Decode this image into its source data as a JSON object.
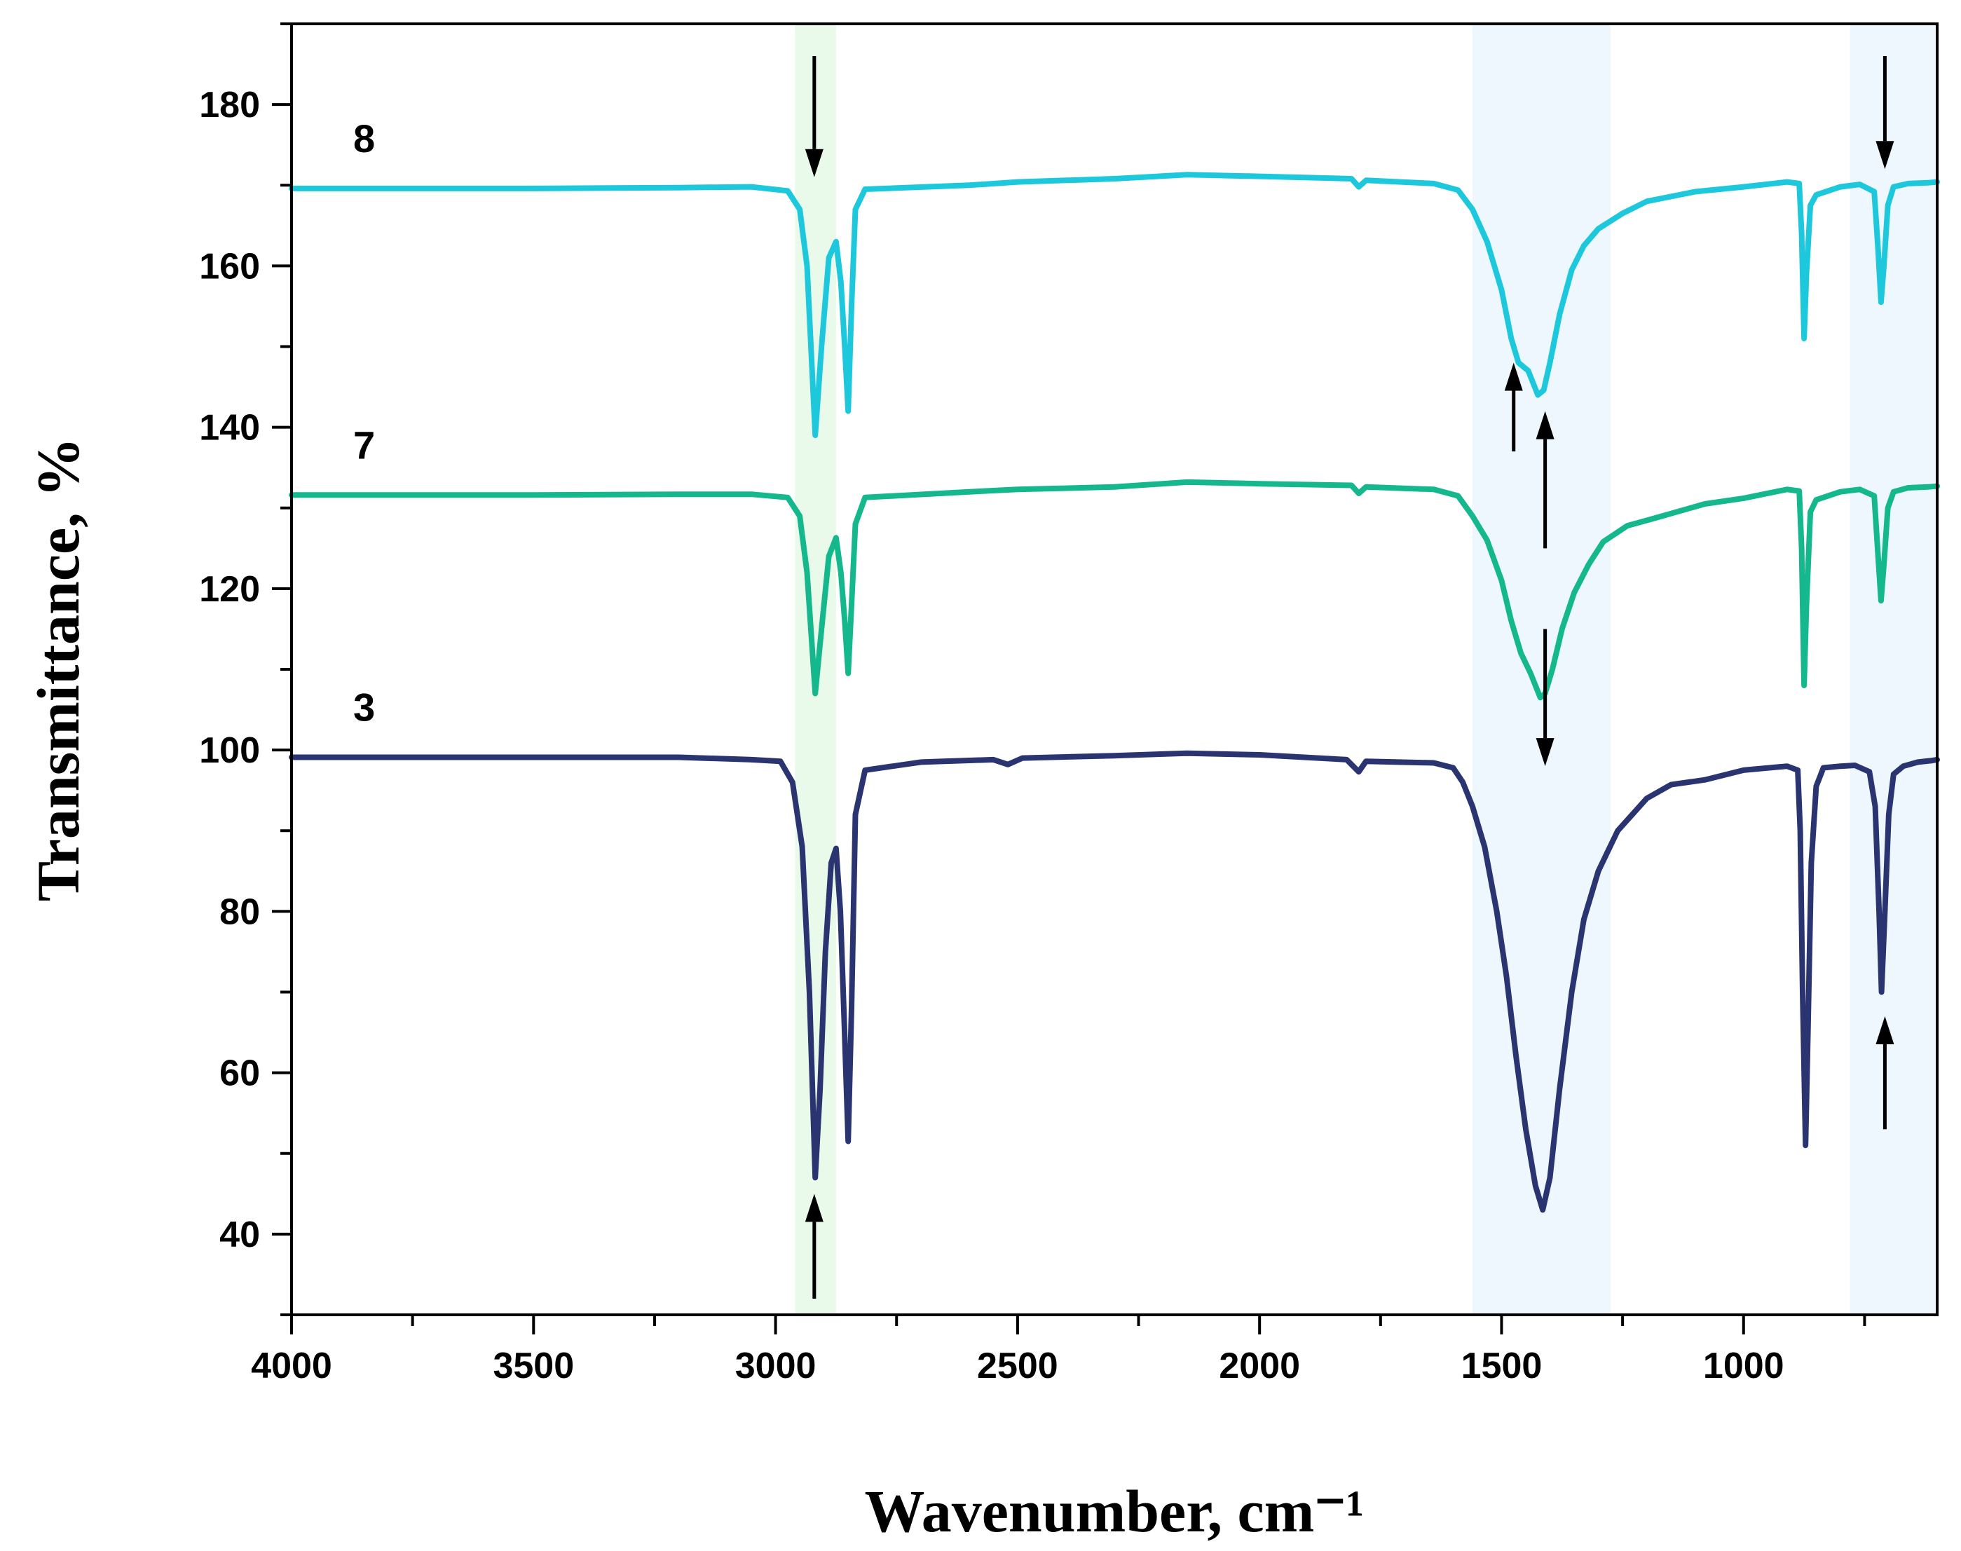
{
  "chart_data": {
    "type": "line",
    "title": "",
    "xlabel": "Wavenumber, cm⁻¹",
    "ylabel": "Transmittance, %",
    "xlim": [
      4000,
      600
    ],
    "ylim": [
      30,
      190
    ],
    "x_ticks": [
      4000,
      3500,
      3000,
      2500,
      2000,
      1500,
      1000
    ],
    "y_ticks": [
      40,
      60,
      80,
      100,
      120,
      140,
      160,
      180
    ],
    "grid": false,
    "highlight_bands": [
      {
        "from": 2960,
        "to": 2875,
        "color": "#eafaea"
      },
      {
        "from": 1560,
        "to": 1275,
        "color": "#eef7fd"
      },
      {
        "from": 780,
        "to": 600,
        "color": "#eef7fd"
      }
    ],
    "series": [
      {
        "name": "8",
        "color": "#1ec8dc",
        "points": [
          [
            4000,
            169.6
          ],
          [
            3500,
            169.6
          ],
          [
            3200,
            169.7
          ],
          [
            3050,
            169.8
          ],
          [
            2975,
            169.3
          ],
          [
            2950,
            167
          ],
          [
            2935,
            160
          ],
          [
            2918,
            139
          ],
          [
            2905,
            150
          ],
          [
            2890,
            161
          ],
          [
            2875,
            163
          ],
          [
            2865,
            158
          ],
          [
            2857,
            150
          ],
          [
            2850,
            142
          ],
          [
            2843,
            155
          ],
          [
            2835,
            167
          ],
          [
            2815,
            169.5
          ],
          [
            2600,
            170
          ],
          [
            2500,
            170.4
          ],
          [
            2300,
            170.8
          ],
          [
            2150,
            171.3
          ],
          [
            2000,
            171.1
          ],
          [
            1810,
            170.8
          ],
          [
            1795,
            169.8
          ],
          [
            1780,
            170.6
          ],
          [
            1640,
            170.2
          ],
          [
            1590,
            169.4
          ],
          [
            1560,
            167
          ],
          [
            1530,
            163
          ],
          [
            1500,
            157
          ],
          [
            1480,
            151
          ],
          [
            1465,
            148
          ],
          [
            1445,
            147
          ],
          [
            1425,
            144
          ],
          [
            1413,
            144.6
          ],
          [
            1400,
            148
          ],
          [
            1380,
            154
          ],
          [
            1355,
            159.5
          ],
          [
            1330,
            162.5
          ],
          [
            1300,
            164.6
          ],
          [
            1250,
            166.5
          ],
          [
            1200,
            168
          ],
          [
            1100,
            169.2
          ],
          [
            1000,
            169.8
          ],
          [
            910,
            170.4
          ],
          [
            885,
            170.2
          ],
          [
            880,
            164
          ],
          [
            875,
            151
          ],
          [
            870,
            159
          ],
          [
            862,
            167.5
          ],
          [
            850,
            168.8
          ],
          [
            800,
            169.8
          ],
          [
            760,
            170.1
          ],
          [
            730,
            169.2
          ],
          [
            722,
            162
          ],
          [
            716,
            155.5
          ],
          [
            710,
            160
          ],
          [
            702,
            167.5
          ],
          [
            690,
            169.8
          ],
          [
            660,
            170.2
          ],
          [
            620,
            170.3
          ],
          [
            600,
            170.4
          ]
        ]
      },
      {
        "name": "7",
        "color": "#14b88c",
        "points": [
          [
            4000,
            131.6
          ],
          [
            3500,
            131.6
          ],
          [
            3200,
            131.7
          ],
          [
            3050,
            131.7
          ],
          [
            2975,
            131.3
          ],
          [
            2950,
            129
          ],
          [
            2935,
            122
          ],
          [
            2918,
            107
          ],
          [
            2905,
            115
          ],
          [
            2890,
            124
          ],
          [
            2875,
            126.3
          ],
          [
            2865,
            122
          ],
          [
            2857,
            116
          ],
          [
            2850,
            109.5
          ],
          [
            2843,
            118
          ],
          [
            2835,
            128
          ],
          [
            2815,
            131.3
          ],
          [
            2600,
            132
          ],
          [
            2500,
            132.3
          ],
          [
            2300,
            132.6
          ],
          [
            2150,
            133.2
          ],
          [
            2000,
            133
          ],
          [
            1810,
            132.8
          ],
          [
            1795,
            131.8
          ],
          [
            1780,
            132.6
          ],
          [
            1640,
            132.3
          ],
          [
            1590,
            131.5
          ],
          [
            1560,
            129
          ],
          [
            1530,
            126
          ],
          [
            1500,
            121
          ],
          [
            1480,
            116
          ],
          [
            1460,
            112
          ],
          [
            1440,
            109.5
          ],
          [
            1420,
            106.5
          ],
          [
            1410,
            107
          ],
          [
            1395,
            110
          ],
          [
            1375,
            115
          ],
          [
            1350,
            119.5
          ],
          [
            1320,
            123
          ],
          [
            1290,
            125.8
          ],
          [
            1240,
            127.8
          ],
          [
            1180,
            128.8
          ],
          [
            1080,
            130.5
          ],
          [
            1000,
            131.2
          ],
          [
            910,
            132.3
          ],
          [
            885,
            132.1
          ],
          [
            880,
            125
          ],
          [
            875,
            108
          ],
          [
            870,
            118
          ],
          [
            862,
            129.5
          ],
          [
            850,
            131
          ],
          [
            800,
            132
          ],
          [
            760,
            132.3
          ],
          [
            730,
            131.5
          ],
          [
            722,
            124
          ],
          [
            716,
            118.5
          ],
          [
            710,
            123
          ],
          [
            702,
            130
          ],
          [
            690,
            132
          ],
          [
            660,
            132.5
          ],
          [
            620,
            132.6
          ],
          [
            600,
            132.7
          ]
        ]
      },
      {
        "name": "3",
        "color": "#2a3470",
        "points": [
          [
            4000,
            99.1
          ],
          [
            3500,
            99.1
          ],
          [
            3200,
            99.1
          ],
          [
            3050,
            98.8
          ],
          [
            2990,
            98.6
          ],
          [
            2965,
            96
          ],
          [
            2945,
            88
          ],
          [
            2930,
            70
          ],
          [
            2918,
            47
          ],
          [
            2908,
            58
          ],
          [
            2897,
            75
          ],
          [
            2885,
            86
          ],
          [
            2875,
            87.8
          ],
          [
            2866,
            80
          ],
          [
            2858,
            66
          ],
          [
            2850,
            51.5
          ],
          [
            2843,
            68
          ],
          [
            2835,
            92
          ],
          [
            2815,
            97.5
          ],
          [
            2700,
            98.5
          ],
          [
            2550,
            98.8
          ],
          [
            2520,
            98.2
          ],
          [
            2490,
            99
          ],
          [
            2300,
            99.3
          ],
          [
            2150,
            99.6
          ],
          [
            2000,
            99.4
          ],
          [
            1820,
            98.8
          ],
          [
            1795,
            97.3
          ],
          [
            1780,
            98.6
          ],
          [
            1640,
            98.4
          ],
          [
            1600,
            97.8
          ],
          [
            1580,
            96
          ],
          [
            1560,
            93
          ],
          [
            1535,
            88
          ],
          [
            1510,
            80
          ],
          [
            1490,
            72
          ],
          [
            1470,
            62
          ],
          [
            1450,
            53
          ],
          [
            1430,
            46
          ],
          [
            1415,
            43
          ],
          [
            1400,
            47
          ],
          [
            1380,
            58
          ],
          [
            1355,
            70
          ],
          [
            1330,
            79
          ],
          [
            1300,
            85
          ],
          [
            1260,
            90
          ],
          [
            1200,
            94
          ],
          [
            1150,
            95.7
          ],
          [
            1080,
            96.3
          ],
          [
            1000,
            97.5
          ],
          [
            910,
            98
          ],
          [
            888,
            97.5
          ],
          [
            883,
            90
          ],
          [
            878,
            70
          ],
          [
            872,
            51
          ],
          [
            867,
            65
          ],
          [
            860,
            86
          ],
          [
            850,
            95.5
          ],
          [
            835,
            97.8
          ],
          [
            800,
            98
          ],
          [
            770,
            98.1
          ],
          [
            740,
            97.3
          ],
          [
            728,
            93
          ],
          [
            720,
            80
          ],
          [
            715,
            70
          ],
          [
            708,
            80
          ],
          [
            700,
            92
          ],
          [
            690,
            97
          ],
          [
            670,
            98
          ],
          [
            640,
            98.5
          ],
          [
            610,
            98.7
          ],
          [
            600,
            98.8
          ]
        ]
      }
    ],
    "arrows": [
      {
        "x": 2920,
        "from": 186,
        "to": 171,
        "direction": "down"
      },
      {
        "x": 2920,
        "from": 32,
        "to": 45,
        "direction": "up"
      },
      {
        "x": 1475,
        "from": 137,
        "to": 148,
        "direction": "up"
      },
      {
        "x": 1410,
        "from": 125,
        "to": 142,
        "direction": "up"
      },
      {
        "x": 1410,
        "from": 115,
        "to": 98,
        "direction": "down"
      },
      {
        "x": 708,
        "from": 186,
        "to": 172,
        "direction": "down"
      },
      {
        "x": 708,
        "from": 53,
        "to": 67,
        "direction": "up"
      }
    ]
  }
}
